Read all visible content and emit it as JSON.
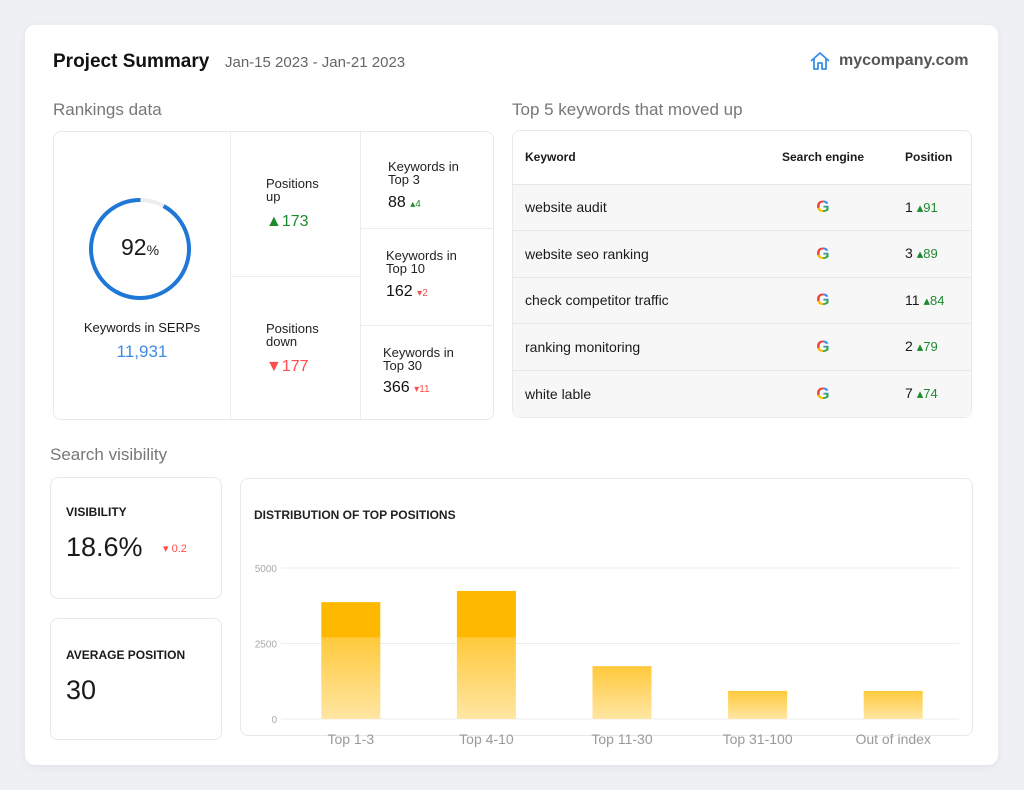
{
  "header": {
    "title": "Project Summary",
    "date_range": "Jan-15 2023 - Jan-21 2023",
    "site": "mycompany.com"
  },
  "rankings": {
    "section": "Rankings data",
    "percent": "92",
    "percent_sign": "%",
    "percent_value": 92,
    "serps_label": "Keywords in SERPs",
    "serps_value": "11,931",
    "positions_up_label": "Positions up",
    "positions_up": "173",
    "positions_down_label": "Positions down",
    "positions_down": "177",
    "top3_label": "Keywords in Top 3",
    "top3": "88",
    "top3_delta": "4",
    "top10_label": "Keywords in Top 10",
    "top10": "162",
    "top10_delta": "2",
    "top30_label": "Keywords in Top 30",
    "top30": "366",
    "top30_delta": "11"
  },
  "keywords": {
    "section": "Top 5 keywords that moved up",
    "headers": [
      "Keyword",
      "Search engine",
      "Position"
    ],
    "rows": [
      {
        "keyword": "website audit",
        "engine": "G",
        "position": "1",
        "delta": "91"
      },
      {
        "keyword": "website seo ranking",
        "engine": "G",
        "position": "3",
        "delta": "89"
      },
      {
        "keyword": "check competitor traffic",
        "engine": "G",
        "position": "11",
        "delta": "84"
      },
      {
        "keyword": "ranking monitoring",
        "engine": "G",
        "position": "2",
        "delta": "79"
      },
      {
        "keyword": "white lable",
        "engine": "G",
        "position": "7",
        "delta": "74"
      }
    ]
  },
  "visibility": {
    "section": "Search visibility",
    "visibility_label": "VISIBILITY",
    "visibility_value": "18.6%",
    "visibility_delta": "0.2",
    "avg_label": "AVERAGE POSITION",
    "avg_value": "30"
  },
  "chart_data": {
    "type": "bar",
    "title": "DISTRIBUTION OF TOP POSITIONS",
    "categories": [
      "Top 1-3",
      "Top 4-10",
      "Top 11-30",
      "Top 31-100",
      "Out of index"
    ],
    "series": [
      {
        "name": "base",
        "values": [
          2700,
          2700,
          1750,
          930,
          930
        ]
      },
      {
        "name": "highlight",
        "values": [
          1170,
          1540,
          0,
          0,
          0
        ]
      }
    ],
    "yticks": [
      "0",
      "2500",
      "5000"
    ],
    "ylim": [
      0,
      5000
    ],
    "colors": {
      "base": "#ffd54f",
      "highlight": "#ffb800"
    }
  }
}
